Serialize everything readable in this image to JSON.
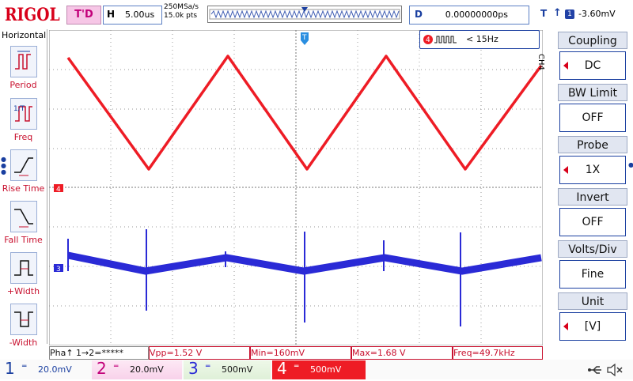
{
  "brand": "RIGOL",
  "trigger_status": "T'D",
  "timebase": {
    "key": "H",
    "value": "5.00us"
  },
  "sample": {
    "rate": "250MSa/s",
    "points": "15.0k pts"
  },
  "delay": {
    "key": "D",
    "value": "0.00000000ps"
  },
  "trigger": {
    "key": "T",
    "edge": "↑",
    "channel": "1",
    "level": "-3.60mV"
  },
  "left_menu": {
    "title": "Horizontal",
    "items": [
      {
        "label": "Period",
        "icon": "period-icon"
      },
      {
        "label": "Freq",
        "icon": "freq-icon"
      },
      {
        "label": "Rise Time",
        "icon": "rise-time-icon"
      },
      {
        "label": "Fall Time",
        "icon": "fall-time-icon"
      },
      {
        "label": "+Width",
        "icon": "positive-width-icon"
      },
      {
        "label": "-Width",
        "icon": "negative-width-icon"
      }
    ]
  },
  "freq_counter": {
    "channel": "4",
    "text": "< 15Hz"
  },
  "right_menu": {
    "side_label": "CH4",
    "items": [
      {
        "title": "Coupling",
        "value": "DC"
      },
      {
        "title": "BW Limit",
        "value": "OFF"
      },
      {
        "title": "Probe",
        "value": "1X"
      },
      {
        "title": "Invert",
        "value": "OFF"
      },
      {
        "title": "Volts/Div",
        "value": "Fine"
      },
      {
        "title": "Unit",
        "value": "[V]"
      }
    ]
  },
  "markers": {
    "ch4": "4",
    "ch3": "3",
    "trigger_pos": "T"
  },
  "measurements": [
    {
      "text": "Pha↑ 1→2=*****"
    },
    {
      "text": "Vpp=1.52 V"
    },
    {
      "text": "Min=160mV"
    },
    {
      "text": "Max=1.68 V"
    },
    {
      "text": "Freq=49.7kHz"
    }
  ],
  "channels": [
    {
      "num": "1",
      "eq": "═",
      "value": "20.0mV",
      "color": "#1a3fa0"
    },
    {
      "num": "2",
      "eq": "═",
      "value": "20.0mV",
      "color": "#c2007a"
    },
    {
      "num": "3",
      "eq": "═",
      "value": "500mV",
      "color": "#2a2ad6"
    },
    {
      "num": "4",
      "eq": "═",
      "value": "500mV",
      "color": "#ffffff"
    }
  ],
  "status_icons": [
    "usb-icon",
    "speaker-mute-icon"
  ],
  "colors": {
    "ch4_trace": "#ee1c25",
    "ch3_trace": "#2a2ad6",
    "accent": "#1a3fa0",
    "brand_red": "#d8001a"
  }
}
